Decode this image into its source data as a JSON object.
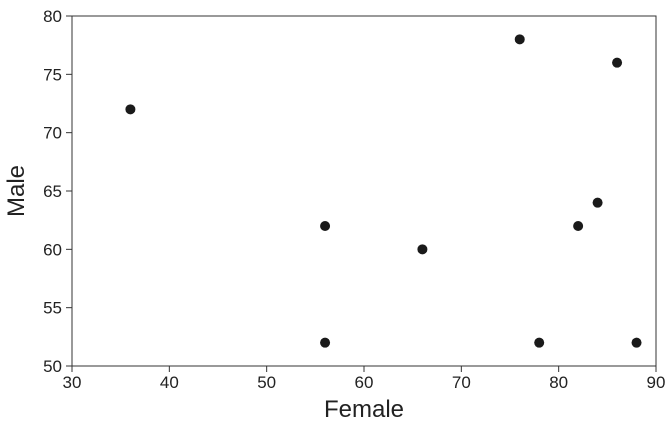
{
  "chart_data": {
    "type": "scatter",
    "title": "",
    "xlabel": "Female",
    "ylabel": "Male",
    "xlim": [
      30,
      90
    ],
    "ylim": [
      50,
      80
    ],
    "xticks": [
      "30",
      "40",
      "50",
      "60",
      "70",
      "80",
      "90"
    ],
    "yticks": [
      "50",
      "55",
      "60",
      "65",
      "70",
      "75",
      "80"
    ],
    "grid": false,
    "point_color": "#1a1a1a",
    "points": [
      {
        "x": 36,
        "y": 72
      },
      {
        "x": 56,
        "y": 62
      },
      {
        "x": 56,
        "y": 52
      },
      {
        "x": 66,
        "y": 60
      },
      {
        "x": 76,
        "y": 78
      },
      {
        "x": 78,
        "y": 52
      },
      {
        "x": 82,
        "y": 62
      },
      {
        "x": 84,
        "y": 64
      },
      {
        "x": 86,
        "y": 76
      },
      {
        "x": 88,
        "y": 52
      }
    ]
  }
}
